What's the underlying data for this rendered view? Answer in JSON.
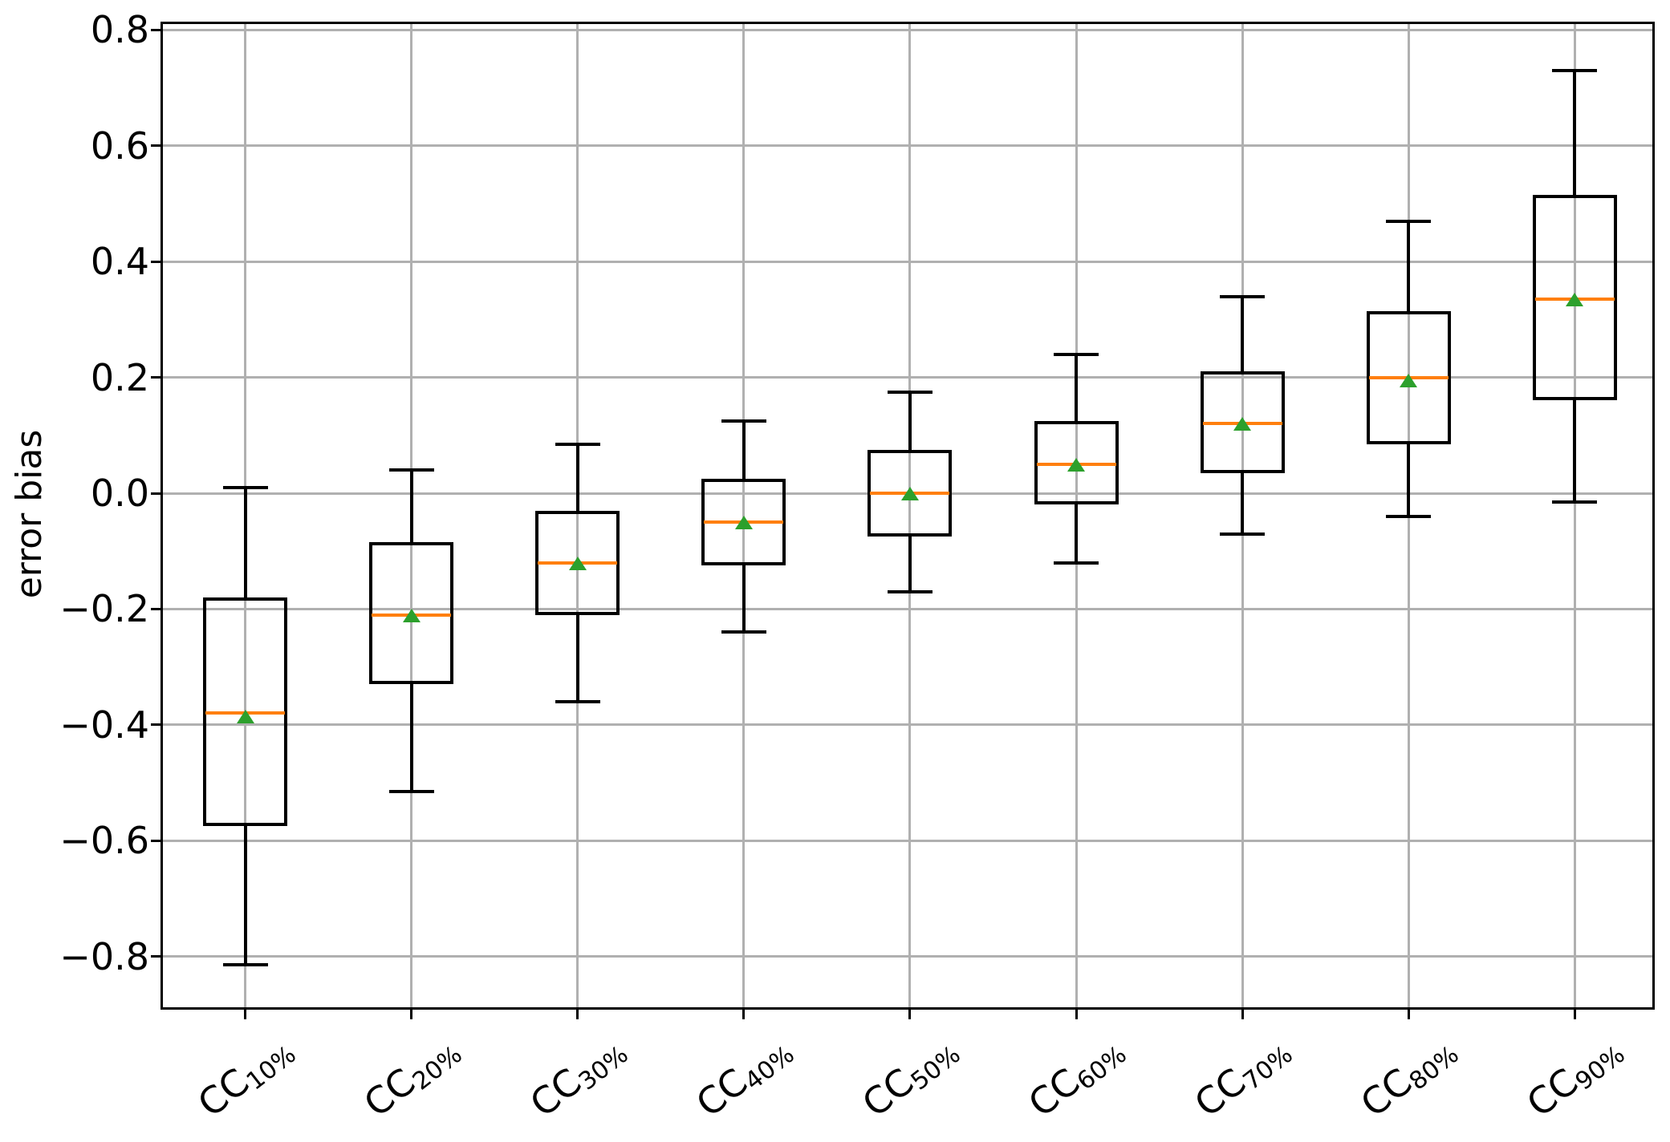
{
  "figure": {
    "background": "#ffffff"
  },
  "axes": {
    "y_label": "error bias",
    "y_tick_labels": [
      "0.8",
      "0.6",
      "0.4",
      "0.2",
      "0.0",
      "−0.2",
      "−0.4",
      "−0.6",
      "−0.8"
    ]
  },
  "chart_data": {
    "type": "boxplot",
    "title": "",
    "xlabel": "",
    "ylabel": "error bias",
    "ylim": [
      -0.89,
      0.81
    ],
    "grid": true,
    "legend": "none",
    "yticks": [
      0.8,
      0.6,
      0.4,
      0.2,
      0.0,
      -0.2,
      -0.4,
      -0.6,
      -0.8
    ],
    "categories": [
      "CC10%",
      "CC20%",
      "CC30%",
      "CC40%",
      "CC50%",
      "CC60%",
      "CC70%",
      "CC80%",
      "CC90%"
    ],
    "boxes": [
      {
        "label_base": "CC",
        "label_sub": "10%",
        "whisker_low": -0.815,
        "q1": -0.575,
        "median": -0.38,
        "mean": -0.385,
        "q3": -0.18,
        "whisker_high": 0.01
      },
      {
        "label_base": "CC",
        "label_sub": "20%",
        "whisker_low": -0.515,
        "q1": -0.33,
        "median": -0.21,
        "mean": -0.21,
        "q3": -0.085,
        "whisker_high": 0.04
      },
      {
        "label_base": "CC",
        "label_sub": "30%",
        "whisker_low": -0.36,
        "q1": -0.21,
        "median": -0.12,
        "mean": -0.12,
        "q3": -0.03,
        "whisker_high": 0.085
      },
      {
        "label_base": "CC",
        "label_sub": "40%",
        "whisker_low": -0.24,
        "q1": -0.125,
        "median": -0.05,
        "mean": -0.05,
        "q3": 0.025,
        "whisker_high": 0.125
      },
      {
        "label_base": "CC",
        "label_sub": "50%",
        "whisker_low": -0.17,
        "q1": -0.075,
        "median": 0.0,
        "mean": 0.0,
        "q3": 0.075,
        "whisker_high": 0.175
      },
      {
        "label_base": "CC",
        "label_sub": "60%",
        "whisker_low": -0.12,
        "q1": -0.02,
        "median": 0.05,
        "mean": 0.05,
        "q3": 0.125,
        "whisker_high": 0.24
      },
      {
        "label_base": "CC",
        "label_sub": "70%",
        "whisker_low": -0.07,
        "q1": 0.035,
        "median": 0.12,
        "mean": 0.12,
        "q3": 0.21,
        "whisker_high": 0.34
      },
      {
        "label_base": "CC",
        "label_sub": "80%",
        "whisker_low": -0.04,
        "q1": 0.085,
        "median": 0.2,
        "mean": 0.195,
        "q3": 0.315,
        "whisker_high": 0.47
      },
      {
        "label_base": "CC",
        "label_sub": "90%",
        "whisker_low": -0.015,
        "q1": 0.16,
        "median": 0.335,
        "mean": 0.335,
        "q3": 0.515,
        "whisker_high": 0.73
      }
    ],
    "colors": {
      "median": "#ff7f0e",
      "mean_marker": "#2ca02c",
      "box_edge": "#000000",
      "grid": "#b0b0b0",
      "axis": "#000000",
      "background": "#ffffff"
    },
    "marker_styles": {
      "mean": "triangle-up"
    }
  }
}
